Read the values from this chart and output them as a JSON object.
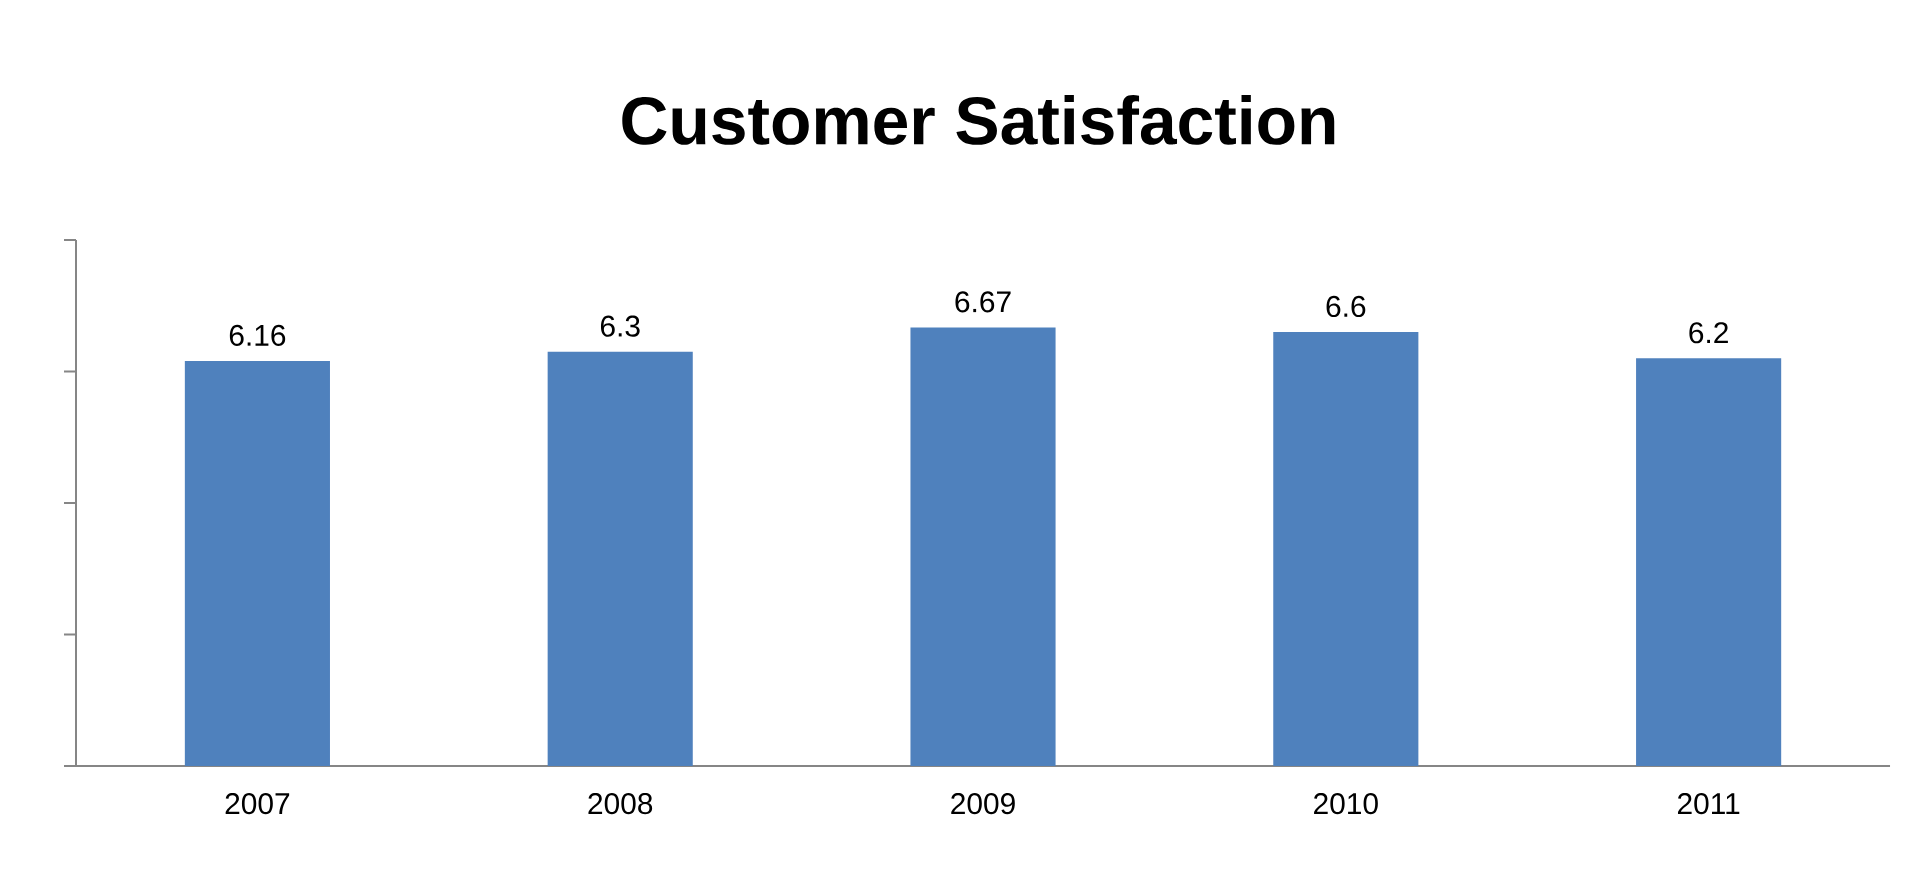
{
  "chart_data": {
    "type": "bar",
    "title": "Customer Satisfaction",
    "categories": [
      "2007",
      "2008",
      "2009",
      "2010",
      "2011"
    ],
    "values": [
      6.16,
      6.3,
      6.67,
      6.6,
      6.2
    ],
    "color": "#4f81bd",
    "ylim": [
      0,
      8
    ],
    "yticks": [
      {
        "value": 0,
        "label": null
      },
      {
        "value": 2,
        "label": null
      },
      {
        "value": 4,
        "label": null
      },
      {
        "value": 6,
        "label": null
      },
      {
        "value": 8,
        "label": null
      }
    ],
    "tick_labels": "x",
    "data_labels": true,
    "grid": false
  }
}
